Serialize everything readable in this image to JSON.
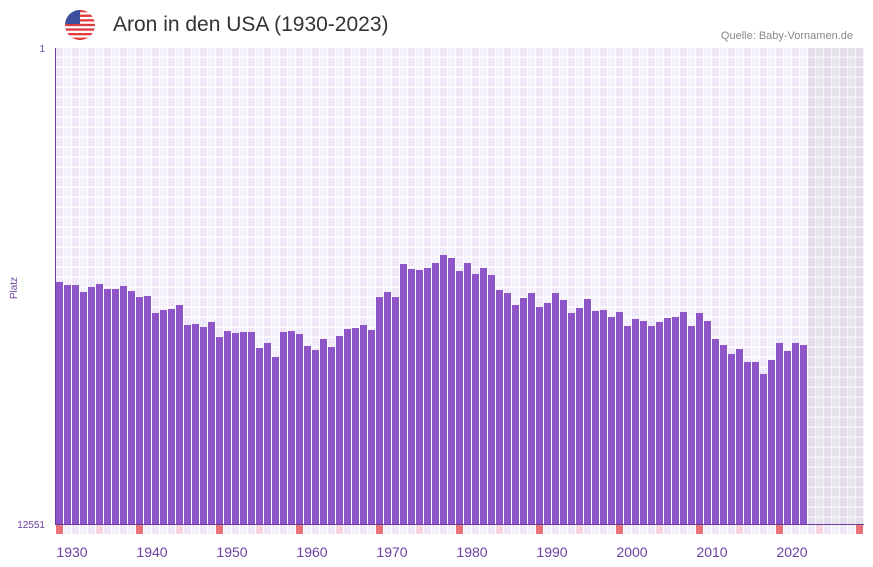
{
  "header": {
    "title": "Aron in den USA (1930-2023)",
    "source": "Quelle: Baby-Vornamen.de",
    "flag_icon": "us-flag-icon"
  },
  "colors": {
    "bar": "#8e55c8",
    "axis": "#6a3fa0",
    "decade_marker": "#e8737a",
    "half_decade_marker": "#f5d6de",
    "grid_bg": "#f1ecfa",
    "future_bg": "#e4e0ec"
  },
  "chart_data": {
    "type": "bar",
    "title": "Aron in den USA (1930-2023)",
    "xlabel": "",
    "ylabel": "Platz",
    "y_reversed": true,
    "ylim": [
      1,
      12551
    ],
    "y_ticks": [
      "1",
      "12551"
    ],
    "x_range": [
      1930,
      2030
    ],
    "x_ticks": [
      "1930",
      "1940",
      "1950",
      "1960",
      "1970",
      "1980",
      "1990",
      "2000",
      "2010",
      "2020"
    ],
    "future_years_from": 2024,
    "categories": [
      1930,
      1931,
      1932,
      1933,
      1934,
      1935,
      1936,
      1937,
      1938,
      1939,
      1940,
      1941,
      1942,
      1943,
      1944,
      1945,
      1946,
      1947,
      1948,
      1949,
      1950,
      1951,
      1952,
      1953,
      1954,
      1955,
      1956,
      1957,
      1958,
      1959,
      1960,
      1961,
      1962,
      1963,
      1964,
      1965,
      1966,
      1967,
      1968,
      1969,
      1970,
      1971,
      1972,
      1973,
      1974,
      1975,
      1976,
      1977,
      1978,
      1979,
      1980,
      1981,
      1982,
      1983,
      1984,
      1985,
      1986,
      1987,
      1988,
      1989,
      1990,
      1991,
      1992,
      1993,
      1994,
      1995,
      1996,
      1997,
      1998,
      1999,
      2000,
      2001,
      2002,
      2003,
      2004,
      2005,
      2006,
      2007,
      2008,
      2009,
      2010,
      2011,
      2012,
      2013,
      2014,
      2015,
      2016,
      2017,
      2018,
      2019,
      2020,
      2021,
      2022,
      2023
    ],
    "values": [
      6170,
      6250,
      6250,
      6434,
      6302,
      6223,
      6355,
      6355,
      6276,
      6408,
      6566,
      6540,
      6988,
      6909,
      6883,
      6777,
      7304,
      7278,
      7357,
      7225,
      7621,
      7463,
      7515,
      7489,
      7489,
      7911,
      7779,
      8148,
      7489,
      7463,
      7542,
      7858,
      7964,
      7674,
      7885,
      7595,
      7410,
      7384,
      7304,
      7436,
      6566,
      6434,
      6566,
      5696,
      5828,
      5854,
      5801,
      5670,
      5459,
      5538,
      5881,
      5670,
      5960,
      5801,
      5986,
      6382,
      6461,
      6777,
      6593,
      6461,
      6830,
      6724,
      6461,
      6645,
      6988,
      6856,
      6619,
      6935,
      6909,
      7093,
      6962,
      7331,
      7146,
      7199,
      7331,
      7225,
      7120,
      7094,
      6962,
      7331,
      6988,
      7199,
      7674,
      7832,
      8069,
      7937,
      8280,
      8280,
      8596,
      8227,
      7779,
      7990,
      7779,
      7832
    ]
  }
}
